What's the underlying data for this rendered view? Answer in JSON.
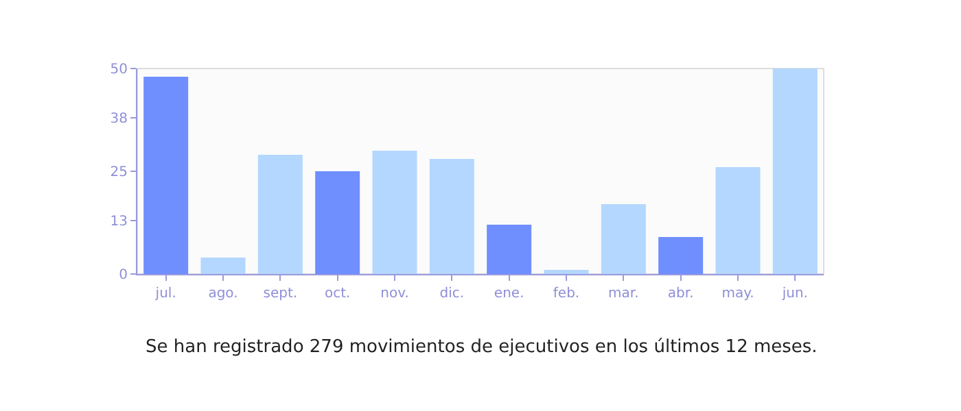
{
  "chart_data": {
    "type": "bar",
    "categories": [
      "jul.",
      "ago.",
      "sept.",
      "oct.",
      "nov.",
      "dic.",
      "ene.",
      "feb.",
      "mar.",
      "abr.",
      "may.",
      "jun."
    ],
    "values": [
      48,
      4,
      29,
      25,
      30,
      28,
      12,
      1,
      17,
      9,
      26,
      50
    ],
    "colors": [
      "#6f8fff",
      "#b3d7ff",
      "#b3d7ff",
      "#6f8fff",
      "#b3d7ff",
      "#b3d7ff",
      "#6f8fff",
      "#b3d7ff",
      "#b3d7ff",
      "#6f8fff",
      "#b3d7ff",
      "#b3d7ff"
    ],
    "ylim": [
      0,
      50
    ],
    "yticks": [
      0,
      13,
      25,
      38,
      50
    ],
    "grid": false,
    "annotations": [
      "Se han registrado 279 movimientos de ejecutivos en los últimos 12 meses."
    ]
  }
}
